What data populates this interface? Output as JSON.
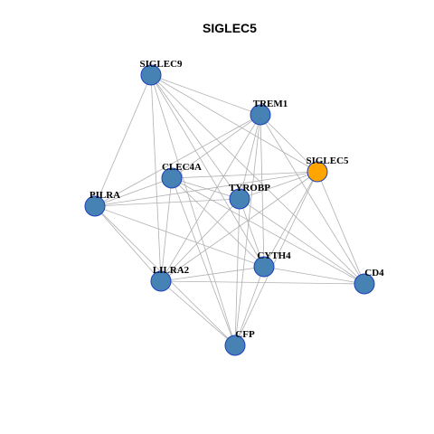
{
  "title": "SIGLEC5",
  "nodes": [
    {
      "label": "SIGLEC9"
    },
    {
      "label": "TREM1"
    },
    {
      "label": "SIGLEC5"
    },
    {
      "label": "CLEC4A"
    },
    {
      "label": "TYROBP"
    },
    {
      "label": "PILRA"
    },
    {
      "label": "CYTH4"
    },
    {
      "label": "LILRA2"
    },
    {
      "label": "CD4"
    },
    {
      "label": "CFP"
    }
  ]
}
